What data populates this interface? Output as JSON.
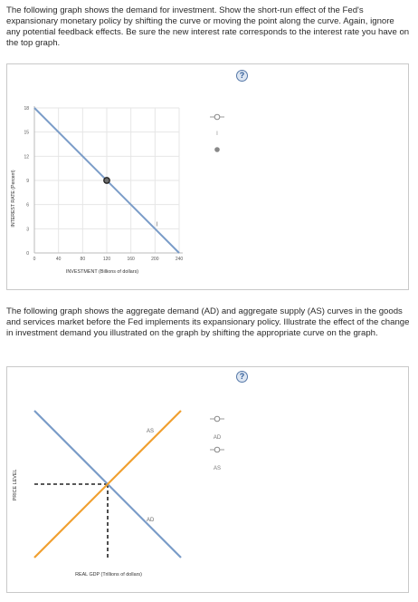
{
  "question1": {
    "instructions": "The following graph shows the demand for investment. Show the short-run effect of the Fed's expansionary monetary policy by shifting the curve or moving the point along the curve. Again, ignore any potential feedback effects. Be sure the new interest rate corresponds to the interest rate you have on the top graph.",
    "help_label": "?",
    "y_axis_title": "INTEREST RATE (Percent)",
    "x_axis_title": "INVESTMENT (Billions of dollars)",
    "y_ticks": [
      "0",
      "3",
      "6",
      "9",
      "12",
      "15",
      "18"
    ],
    "x_ticks": [
      "0",
      "40",
      "80",
      "120",
      "160",
      "200",
      "240"
    ],
    "curve_label": "I",
    "tool_curve_label": "I",
    "tool_point_label": "",
    "colors": {
      "demand_line": "#7a9cc8",
      "point_fill": "#6f6f6f",
      "tool_point": "#888888"
    },
    "chart_data": {
      "type": "line",
      "xlabel": "INVESTMENT (Billions of dollars)",
      "ylabel": "INTEREST RATE (Percent)",
      "xlim": [
        0,
        240
      ],
      "ylim": [
        0,
        18
      ],
      "series": [
        {
          "name": "I",
          "x": [
            0,
            240
          ],
          "y": [
            18,
            0
          ]
        }
      ],
      "point": {
        "x": 120,
        "y": 9
      }
    }
  },
  "question2": {
    "instructions": "The following graph shows the aggregate demand (AD) and aggregate supply (AS) curves in the goods and services market before the Fed implements its expansionary policy. Illustrate the effect of the change in investment demand you illustrated on the graph by shifting the appropriate curve on the graph.",
    "help_label": "?",
    "y_axis_title": "PRICE LEVEL",
    "x_axis_title": "REAL GDP (Trillions of dollars)",
    "as_label": "AS",
    "ad_label": "AD",
    "tool_ad_label": "AD",
    "tool_as_label": "AS",
    "colors": {
      "ad_line": "#7a9cc8",
      "as_line": "#f0a030",
      "dashed": "#222222"
    },
    "chart_data": {
      "type": "line",
      "xlabel": "REAL GDP (Trillions of dollars)",
      "ylabel": "PRICE LEVEL",
      "series": [
        {
          "name": "AD",
          "x": [
            0,
            1
          ],
          "y": [
            1,
            0
          ]
        },
        {
          "name": "AS",
          "x": [
            0,
            1
          ],
          "y": [
            0,
            1
          ]
        }
      ],
      "equilibrium": {
        "x": 0.5,
        "y": 0.5
      }
    }
  }
}
